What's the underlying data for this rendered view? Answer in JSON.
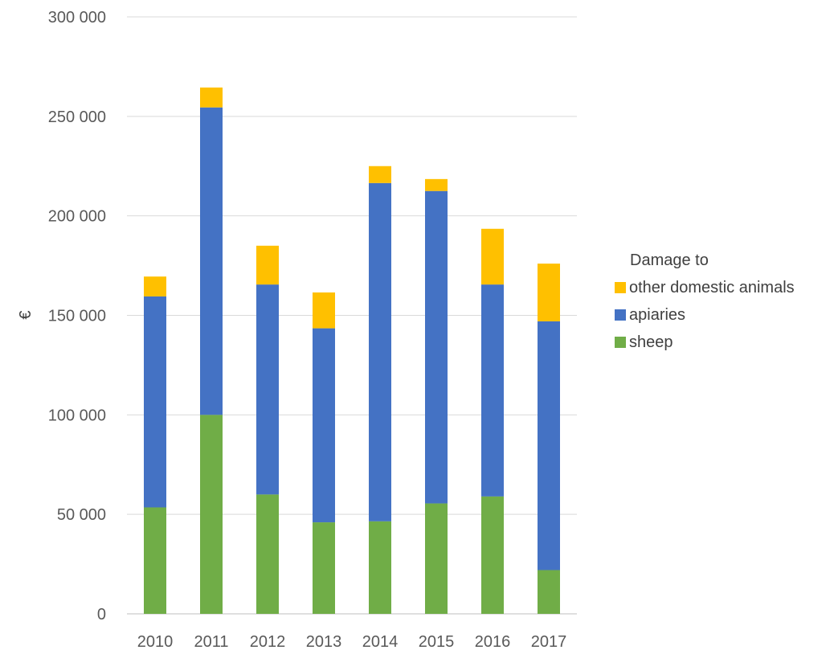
{
  "chart_data": {
    "type": "bar",
    "stacked": true,
    "categories": [
      "2010",
      "2011",
      "2012",
      "2013",
      "2014",
      "2015",
      "2016",
      "2017"
    ],
    "series": [
      {
        "name": "sheep",
        "color": "#70AD47",
        "values": [
          53500,
          100000,
          60000,
          46000,
          46500,
          55500,
          59000,
          22000
        ]
      },
      {
        "name": "apiaries",
        "color": "#4472C4",
        "values": [
          106000,
          154500,
          105500,
          97500,
          170000,
          157000,
          106500,
          125000
        ]
      },
      {
        "name": "other domestic animals",
        "color": "#FFC000",
        "values": [
          10000,
          10000,
          19500,
          18000,
          8500,
          6000,
          28000,
          29000
        ]
      }
    ],
    "xlabel": "",
    "ylabel": "€",
    "ylim": [
      0,
      300000
    ],
    "yticks": [
      "0",
      "50 000",
      "100 000",
      "150 000",
      "200 000",
      "250 000",
      "300 000"
    ],
    "legend": {
      "title": "Damage to",
      "placement": "right",
      "order": [
        "other domestic animals",
        "apiaries",
        "sheep"
      ]
    },
    "grid": true
  }
}
